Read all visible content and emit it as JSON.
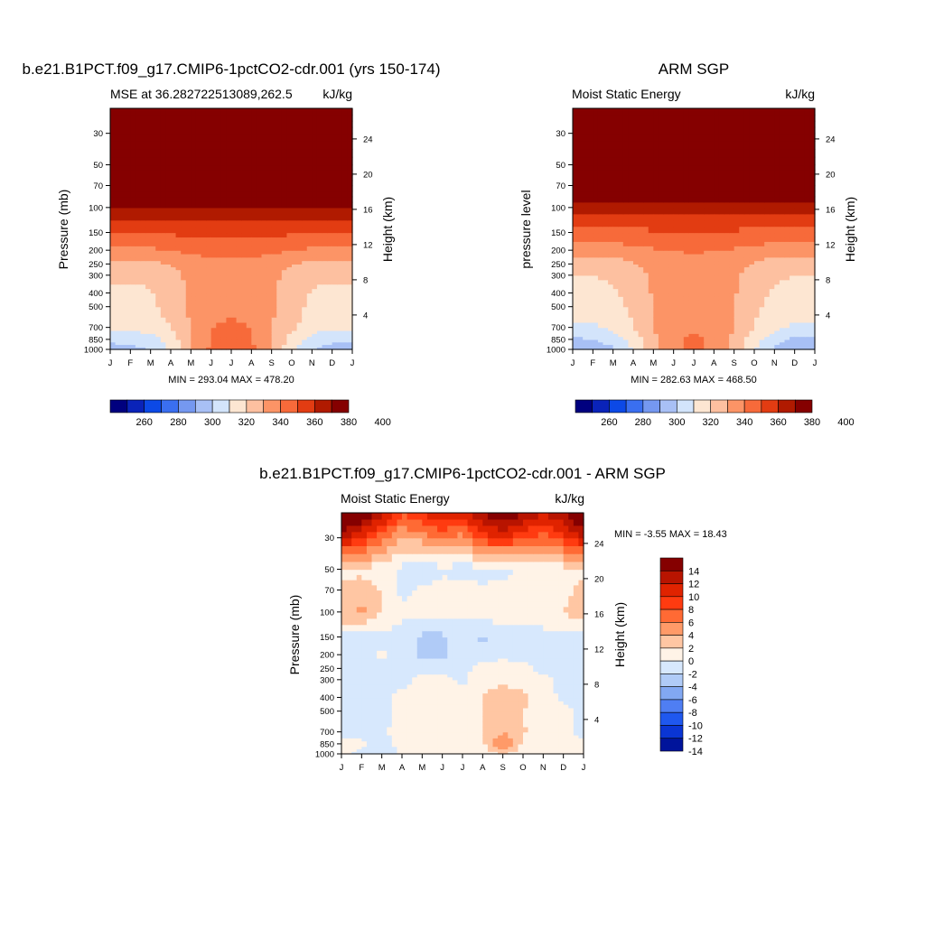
{
  "colors": {
    "palette12": [
      "#00007f",
      "#0a23b9",
      "#0c49e6",
      "#3a6ff0",
      "#7598f0",
      "#a8c0f5",
      "#d3e4fb",
      "#fde6d2",
      "#fdc0a0",
      "#fc9466",
      "#f76a3a",
      "#e23c12",
      "#b01a00",
      "#850000"
    ],
    "palette_diff": [
      "#850000",
      "#b81400",
      "#e02300",
      "#ff3b10",
      "#ff6a34",
      "#ff9a68",
      "#ffc6a3",
      "#fff3e7",
      "#d7e8fd",
      "#b0cbf7",
      "#82a8f2",
      "#4f7ef3",
      "#1f58ef",
      "#0a35d4",
      "#00149b"
    ]
  },
  "panels": [
    {
      "title": "b.e21.B1PCT.f09_g17.CMIP6-1pctCO2-cdr.001 (yrs 150-174)",
      "subtitle_left": "MSE at 36.282722513089,262.5",
      "subtitle_right": "kJ/kg",
      "ylabel_left": "Pressure (mb)",
      "ylabel_right": "Height (km)",
      "minmax": "MIN = 293.04 MAX = 478.20"
    },
    {
      "title": "ARM SGP",
      "subtitle_left": "Moist Static Energy",
      "subtitle_right": "kJ/kg",
      "ylabel_left": "pressure level",
      "ylabel_right": "Height (km)",
      "minmax": "MIN = 282.63 MAX = 468.50"
    },
    {
      "title": "b.e21.B1PCT.f09_g17.CMIP6-1pctCO2-cdr.001 - ARM SGP",
      "subtitle_left": "Moist Static Energy",
      "subtitle_right": "kJ/kg",
      "ylabel_left": "Pressure (mb)",
      "ylabel_right": "Height (km)",
      "minmax": "MIN =  -3.55 MAX =  18.43"
    }
  ],
  "chart_data": [
    {
      "type": "heatmap",
      "title": "b.e21.B1PCT.f09_g17.CMIP6-1pctCO2-cdr.001 (yrs 150-174)",
      "subtitle": "MSE at 36.282722513089,262.5",
      "units": "kJ/kg",
      "xlabel": "",
      "ylabel": "Pressure (mb)",
      "ylabel_right": "Height (km)",
      "x_ticks": [
        "J",
        "F",
        "M",
        "A",
        "M",
        "J",
        "J",
        "A",
        "S",
        "O",
        "N",
        "D",
        "J"
      ],
      "y_ticks": [
        30,
        50,
        70,
        100,
        150,
        200,
        250,
        300,
        400,
        500,
        700,
        850,
        1000
      ],
      "y_scale": "log",
      "ylim": [
        1000,
        20
      ],
      "right_ticks": [
        4,
        8,
        12,
        16,
        20,
        24
      ],
      "colorbar_ticks": [
        260,
        280,
        300,
        320,
        340,
        360,
        380,
        400
      ],
      "months": [
        "J",
        "F",
        "M",
        "A",
        "M",
        "J",
        "J",
        "A",
        "S",
        "O",
        "N",
        "D",
        "J"
      ],
      "levels": [
        1000,
        850,
        700,
        500,
        400,
        300,
        250,
        200,
        150,
        100,
        70,
        50,
        30,
        20
      ],
      "values": [
        [
          296,
          296,
          300,
          312,
          330,
          342,
          346,
          343,
          332,
          312,
          300,
          296,
          296
        ],
        [
          302,
          304,
          306,
          314,
          330,
          340,
          343,
          340,
          330,
          315,
          306,
          302,
          302
        ],
        [
          312,
          312,
          314,
          320,
          330,
          340,
          342,
          340,
          330,
          322,
          314,
          312,
          312
        ],
        [
          316,
          316,
          318,
          324,
          332,
          337,
          338,
          337,
          332,
          324,
          318,
          316,
          316
        ],
        [
          317,
          317,
          319,
          325,
          332,
          336,
          337,
          336,
          332,
          325,
          319,
          317,
          317
        ],
        [
          322,
          322,
          323,
          327,
          332,
          336,
          337,
          336,
          332,
          327,
          323,
          322,
          322
        ],
        [
          326,
          326,
          327,
          330,
          334,
          337,
          338,
          337,
          334,
          330,
          327,
          326,
          326
        ],
        [
          337,
          338,
          338,
          340,
          342,
          343,
          343,
          343,
          342,
          340,
          338,
          337,
          337
        ],
        [
          350,
          351,
          351,
          351,
          352,
          352,
          352,
          352,
          352,
          351,
          351,
          350,
          350
        ],
        [
          368,
          369,
          369,
          369,
          370,
          370,
          370,
          370,
          370,
          369,
          369,
          368,
          368
        ],
        [
          396,
          397,
          396,
          395,
          394,
          393,
          392,
          393,
          394,
          395,
          396,
          396,
          396
        ],
        [
          430,
          430,
          429,
          428,
          428,
          428,
          428,
          428,
          428,
          429,
          429,
          430,
          430
        ],
        [
          470,
          470,
          470,
          470,
          470,
          470,
          470,
          470,
          470,
          470,
          470,
          470,
          470
        ],
        [
          478,
          478,
          478,
          478,
          478,
          478,
          478,
          478,
          478,
          478,
          478,
          478,
          478
        ]
      ],
      "min": 293.04,
      "max": 478.2
    },
    {
      "type": "heatmap",
      "title": "ARM SGP",
      "subtitle": "Moist Static Energy",
      "units": "kJ/kg",
      "xlabel": "",
      "ylabel": "pressure level",
      "ylabel_right": "Height (km)",
      "x_ticks": [
        "J",
        "F",
        "M",
        "A",
        "M",
        "J",
        "J",
        "A",
        "S",
        "O",
        "N",
        "D",
        "J"
      ],
      "y_ticks": [
        30,
        50,
        70,
        100,
        150,
        200,
        250,
        300,
        400,
        500,
        700,
        850,
        1000
      ],
      "y_scale": "log",
      "ylim": [
        1000,
        20
      ],
      "right_ticks": [
        4,
        8,
        12,
        16,
        20,
        24
      ],
      "colorbar_ticks": [
        260,
        280,
        300,
        320,
        340,
        360,
        380,
        400
      ],
      "months": [
        "J",
        "F",
        "M",
        "A",
        "M",
        "J",
        "J",
        "A",
        "S",
        "O",
        "N",
        "D",
        "J"
      ],
      "levels": [
        1000,
        850,
        700,
        500,
        400,
        300,
        250,
        200,
        150,
        100,
        70,
        50,
        30,
        20
      ],
      "values": [
        [
          292,
          293,
          298,
          310,
          326,
          338,
          343,
          338,
          326,
          310,
          298,
          292,
          292
        ],
        [
          298,
          300,
          304,
          314,
          328,
          338,
          342,
          338,
          328,
          314,
          304,
          298,
          298
        ],
        [
          308,
          309,
          312,
          320,
          330,
          336,
          338,
          336,
          330,
          320,
          312,
          308,
          308
        ],
        [
          314,
          314,
          316,
          322,
          330,
          335,
          336,
          335,
          330,
          322,
          316,
          314,
          314
        ],
        [
          316,
          316,
          318,
          324,
          331,
          335,
          336,
          335,
          331,
          324,
          318,
          316,
          316
        ],
        [
          320,
          320,
          322,
          326,
          332,
          335,
          336,
          335,
          332,
          326,
          322,
          320,
          320
        ],
        [
          324,
          324,
          325,
          329,
          333,
          336,
          337,
          336,
          333,
          329,
          325,
          324,
          324
        ],
        [
          334,
          334,
          335,
          337,
          339,
          340,
          341,
          340,
          339,
          337,
          335,
          334,
          334
        ],
        [
          345,
          345,
          346,
          347,
          348,
          348,
          349,
          348,
          348,
          347,
          346,
          345,
          345
        ],
        [
          363,
          363,
          364,
          364,
          365,
          365,
          365,
          365,
          365,
          364,
          364,
          363,
          363
        ],
        [
          392,
          392,
          391,
          390,
          389,
          388,
          388,
          388,
          389,
          390,
          391,
          392,
          392
        ],
        [
          428,
          428,
          427,
          426,
          426,
          426,
          426,
          426,
          426,
          427,
          427,
          428,
          428
        ],
        [
          462,
          462,
          462,
          462,
          462,
          462,
          462,
          462,
          462,
          462,
          462,
          462,
          462
        ],
        [
          468,
          468,
          468,
          468,
          468,
          468,
          468,
          468,
          468,
          468,
          468,
          468,
          468
        ]
      ],
      "min": 282.63,
      "max": 468.5
    },
    {
      "type": "heatmap",
      "title": "b.e21.B1PCT.f09_g17.CMIP6-1pctCO2-cdr.001 - ARM SGP",
      "subtitle": "Moist Static Energy",
      "units": "kJ/kg",
      "xlabel": "",
      "ylabel": "Pressure (mb)",
      "ylabel_right": "Height (km)",
      "x_ticks": [
        "J",
        "F",
        "M",
        "A",
        "M",
        "J",
        "J",
        "A",
        "S",
        "O",
        "N",
        "D",
        "J"
      ],
      "y_ticks": [
        30,
        50,
        70,
        100,
        150,
        200,
        250,
        300,
        400,
        500,
        700,
        850,
        1000
      ],
      "y_scale": "log",
      "ylim": [
        1000,
        20
      ],
      "right_ticks": [
        4,
        8,
        12,
        16,
        20,
        24
      ],
      "colorbar_ticks": [
        14,
        12,
        10,
        8,
        6,
        4,
        2,
        0,
        -2,
        -4,
        -6,
        -8,
        -10,
        -12,
        -14
      ],
      "months": [
        "J",
        "F",
        "M",
        "A",
        "M",
        "J",
        "J",
        "A",
        "S",
        "O",
        "N",
        "D",
        "J"
      ],
      "levels": [
        1000,
        850,
        700,
        500,
        400,
        300,
        250,
        200,
        150,
        100,
        70,
        50,
        30,
        20
      ],
      "values": [
        [
          0.5,
          -0.5,
          -1.5,
          0.5,
          0.8,
          0.5,
          0.5,
          1.0,
          1.8,
          0.8,
          0.5,
          0.3,
          0.5
        ],
        [
          0.5,
          0.5,
          -1.0,
          0.8,
          1.0,
          1.2,
          1.0,
          1.5,
          6.5,
          1.5,
          0.8,
          0.5,
          0.5
        ],
        [
          -0.5,
          -0.8,
          -0.5,
          1.0,
          1.2,
          1.2,
          1.5,
          1.8,
          4.0,
          2.2,
          0.8,
          0.5,
          -0.5
        ],
        [
          -0.5,
          -1.0,
          -0.5,
          0.5,
          1.0,
          1.0,
          1.5,
          2.0,
          3.0,
          2.0,
          1.0,
          0.5,
          -0.5
        ],
        [
          -0.5,
          -1.0,
          -0.5,
          0.5,
          1.0,
          0.8,
          1.0,
          2.0,
          3.0,
          2.5,
          1.0,
          -0.5,
          -0.5
        ],
        [
          -1.0,
          -0.5,
          -0.5,
          -0.5,
          0.5,
          0.5,
          -0.5,
          1.5,
          1.5,
          1.0,
          0.5,
          -0.5,
          -1.0
        ],
        [
          -1.0,
          -1.0,
          -0.5,
          -1.0,
          -0.5,
          -0.5,
          -0.5,
          0.5,
          1.0,
          0.5,
          -0.5,
          -0.5,
          -1.0
        ],
        [
          -1.0,
          -1.0,
          0.5,
          -1.0,
          -2.5,
          -2.5,
          -1.0,
          -0.5,
          -0.5,
          -0.5,
          -1.0,
          -0.5,
          -1.0
        ],
        [
          -0.5,
          -1.0,
          -0.5,
          -1.0,
          -2.5,
          -2.5,
          -1.0,
          -2.5,
          -1.0,
          -0.5,
          -1.0,
          -0.5,
          -0.5
        ],
        [
          3.5,
          4.5,
          2.0,
          0.5,
          0.5,
          0.5,
          0.5,
          1.0,
          1.0,
          0.5,
          1.5,
          2.0,
          3.5
        ],
        [
          2.5,
          3.0,
          2.0,
          -0.5,
          0.5,
          1.0,
          1.0,
          0.5,
          0.5,
          0.5,
          1.0,
          1.5,
          2.5
        ],
        [
          1.5,
          1.5,
          0.8,
          -0.5,
          -2.5,
          -0.5,
          -1.0,
          -1.0,
          -0.5,
          0.5,
          1.0,
          1.0,
          1.5
        ],
        [
          12.0,
          10.0,
          6.5,
          4.0,
          5.0,
          6.0,
          5.0,
          9.0,
          10.0,
          8.0,
          7.0,
          9.0,
          12.0
        ],
        [
          18.0,
          16.0,
          13.0,
          8.0,
          10.0,
          12.0,
          11.0,
          14.0,
          16.0,
          14.0,
          12.0,
          14.0,
          18.0
        ]
      ],
      "min": -3.55,
      "max": 18.43
    }
  ]
}
